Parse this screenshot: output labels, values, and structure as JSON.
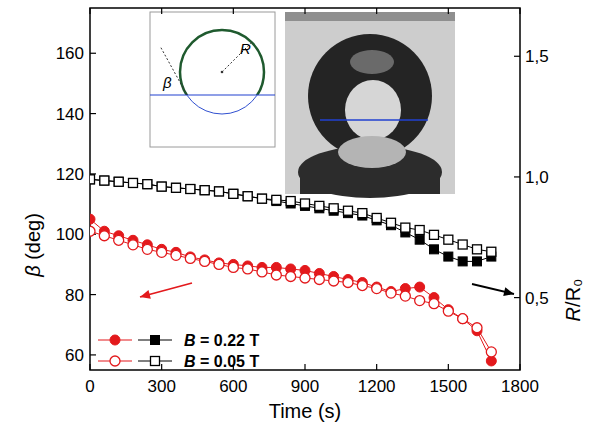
{
  "chart_data": {
    "type": "line",
    "x_label": "Time (s)",
    "y_label": "β (deg)",
    "y2_label": "R/R₀",
    "annotations": [
      "β",
      "R"
    ],
    "x": [
      0,
      60,
      120,
      180,
      240,
      300,
      360,
      420,
      480,
      540,
      600,
      660,
      720,
      780,
      840,
      900,
      960,
      1020,
      1080,
      1140,
      1200,
      1260,
      1320,
      1380,
      1440,
      1500,
      1560,
      1620,
      1680
    ],
    "xlim": [
      0,
      1800
    ],
    "xticks": [
      0,
      300,
      600,
      900,
      1200,
      1500,
      1800
    ],
    "ylim": [
      55,
      175
    ],
    "yticks": [
      60,
      80,
      100,
      120,
      140,
      160
    ],
    "y2lim": [
      0.2,
      1.7
    ],
    "y2ticks": [
      {
        "value": 0.5,
        "label": "0,5"
      },
      {
        "value": 1.0,
        "label": "1,0"
      },
      {
        "value": 1.5,
        "label": "1,5"
      }
    ],
    "grid": false,
    "legend": "lower left",
    "series": [
      {
        "name": "B = 0.22 T",
        "color": "#e3191c",
        "marker": "circle",
        "line_style": "solid",
        "axis": "y",
        "values": [
          105,
          101,
          99.5,
          98,
          96.5,
          95,
          94,
          92.5,
          91.5,
          90.5,
          90,
          89.5,
          89,
          89,
          88.5,
          88,
          87,
          86,
          85,
          84,
          82.5,
          81,
          82,
          82.5,
          79,
          75,
          72,
          68,
          58
        ]
      },
      {
        "name": "B = 0.05 T",
        "color": "#e3191c",
        "marker": "open-circle",
        "line_style": "solid",
        "axis": "y",
        "values": [
          101,
          99.5,
          98,
          96.5,
          95,
          94,
          93,
          92,
          91,
          90,
          89,
          88.5,
          87.5,
          86.5,
          86,
          85.5,
          85,
          84.5,
          84,
          83,
          82,
          80.5,
          79.5,
          78,
          77,
          74.5,
          72,
          69,
          61
        ]
      },
      {
        "name": "B = 0.22 T",
        "color": "#000000",
        "marker": "square",
        "line_style": "solid",
        "axis": "y2",
        "values": [
          0.99,
          0.985,
          0.98,
          0.975,
          0.97,
          0.96,
          0.955,
          0.95,
          0.945,
          0.94,
          0.93,
          0.92,
          0.91,
          0.9,
          0.89,
          0.88,
          0.87,
          0.86,
          0.85,
          0.84,
          0.82,
          0.8,
          0.77,
          0.74,
          0.7,
          0.67,
          0.65,
          0.65,
          0.67
        ]
      },
      {
        "name": "B = 0.05 T",
        "color": "#000000",
        "marker": "open-square",
        "line_style": "solid",
        "axis": "y2",
        "values": [
          0.99,
          0.985,
          0.98,
          0.975,
          0.97,
          0.96,
          0.955,
          0.95,
          0.945,
          0.94,
          0.93,
          0.92,
          0.91,
          0.905,
          0.9,
          0.89,
          0.88,
          0.87,
          0.86,
          0.85,
          0.83,
          0.81,
          0.79,
          0.78,
          0.76,
          0.74,
          0.72,
          0.7,
          0.69
        ]
      }
    ]
  }
}
